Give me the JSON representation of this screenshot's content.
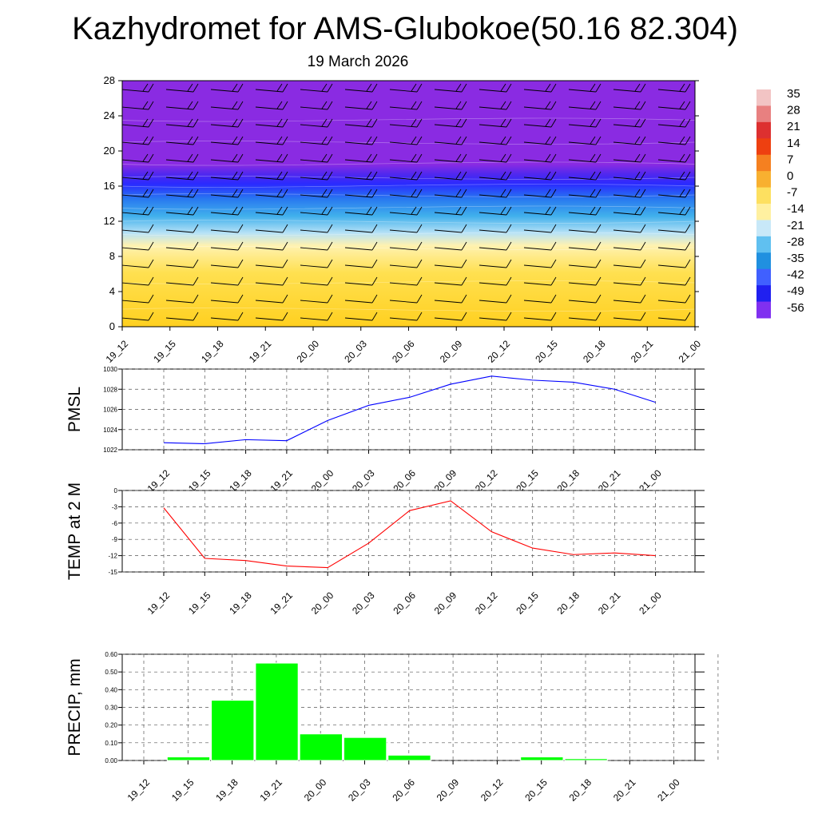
{
  "header": {
    "title": "Kazhydromet for AMS-Glubokoe(50.16 82.304)",
    "subtitle": "19 March 2026"
  },
  "chart_data": [
    {
      "type": "heatmap",
      "name": "vertical-profile",
      "categories": [
        "19_12",
        "19_15",
        "19_18",
        "19_21",
        "20_00",
        "20_03",
        "20_06",
        "20_09",
        "20_12",
        "20_15",
        "20_18",
        "20_21",
        "21_00"
      ],
      "ylim": [
        0,
        28
      ],
      "yticks": [
        0,
        4,
        8,
        12,
        16,
        20,
        24,
        28
      ],
      "colorbar": {
        "labels": [
          "35",
          "28",
          "21",
          "14",
          "7",
          "0",
          "-7",
          "-14",
          "-21",
          "-28",
          "-35",
          "-42",
          "-49",
          "-56"
        ],
        "colors": [
          "#f2c4c4",
          "#e88080",
          "#dd3030",
          "#ee4010",
          "#f58020",
          "#f8b030",
          "#fde060",
          "#fff0a0",
          "#c8e8f8",
          "#60c0f0",
          "#2090e0",
          "#4060ff",
          "#2020f0",
          "#8030f0"
        ]
      },
      "layers": [
        {
          "from": 0,
          "to": 9,
          "temp_range": "0 to -7",
          "color": "#ffd93a"
        },
        {
          "from": 9,
          "to": 11,
          "temp_range": "-7 to -14",
          "color": "#fff3b0"
        },
        {
          "from": 11,
          "to": 14,
          "temp_range": "-21 to -35",
          "color": "#40b0ec"
        },
        {
          "from": 14,
          "to": 17,
          "temp_range": "-42 to -56",
          "color": "#3030ff"
        },
        {
          "from": 17,
          "to": 28,
          "temp_range": "below -56",
          "color": "#8a2be2"
        }
      ]
    },
    {
      "type": "line",
      "name": "pmsl",
      "ylabel": "PMSL",
      "categories": [
        "19_12",
        "19_15",
        "19_18",
        "19_21",
        "20_00",
        "20_03",
        "20_06",
        "20_09",
        "20_12",
        "20_15",
        "20_18",
        "20_21",
        "21_00"
      ],
      "values": [
        1022.7,
        1022.6,
        1023.0,
        1022.9,
        1024.9,
        1026.4,
        1027.2,
        1028.5,
        1029.3,
        1028.9,
        1028.7,
        1028.0,
        1026.7
      ],
      "ylim": [
        1022,
        1030
      ],
      "yticks": [
        "1022",
        "1024",
        "1026",
        "1028",
        "1030"
      ],
      "color": "#0000ff"
    },
    {
      "type": "line",
      "name": "temp",
      "ylabel": "TEMP at 2 M",
      "categories": [
        "19_12",
        "19_15",
        "19_18",
        "19_21",
        "20_00",
        "20_03",
        "20_06",
        "20_09",
        "20_12",
        "20_15",
        "20_18",
        "20_21",
        "21_00"
      ],
      "values": [
        -3.2,
        -12.5,
        -12.9,
        -13.9,
        -14.2,
        -9.7,
        -3.7,
        -1.9,
        -7.6,
        -10.6,
        -11.8,
        -11.5,
        -12.0
      ],
      "ylim": [
        -15,
        0
      ],
      "yticks": [
        "-15",
        "-12",
        "-9",
        "-6",
        "-3",
        "0"
      ],
      "color": "#ff0000"
    },
    {
      "type": "bar",
      "name": "precip",
      "ylabel": "PRECIP, mm",
      "categories": [
        "19_12",
        "19_15",
        "19_18",
        "19_21",
        "20_00",
        "20_03",
        "20_06",
        "20_09",
        "20_12",
        "20_15",
        "20_18",
        "20_21",
        "21_00"
      ],
      "values": [
        0.0,
        0.02,
        0.34,
        0.55,
        0.15,
        0.13,
        0.03,
        0.0,
        0.0,
        0.02,
        0.01,
        0.0,
        0.0
      ],
      "ylim": [
        0,
        0.6
      ],
      "yticks": [
        "0.00",
        "0.10",
        "0.20",
        "0.30",
        "0.40",
        "0.50",
        "0.60"
      ],
      "color": "#00ff00"
    }
  ]
}
